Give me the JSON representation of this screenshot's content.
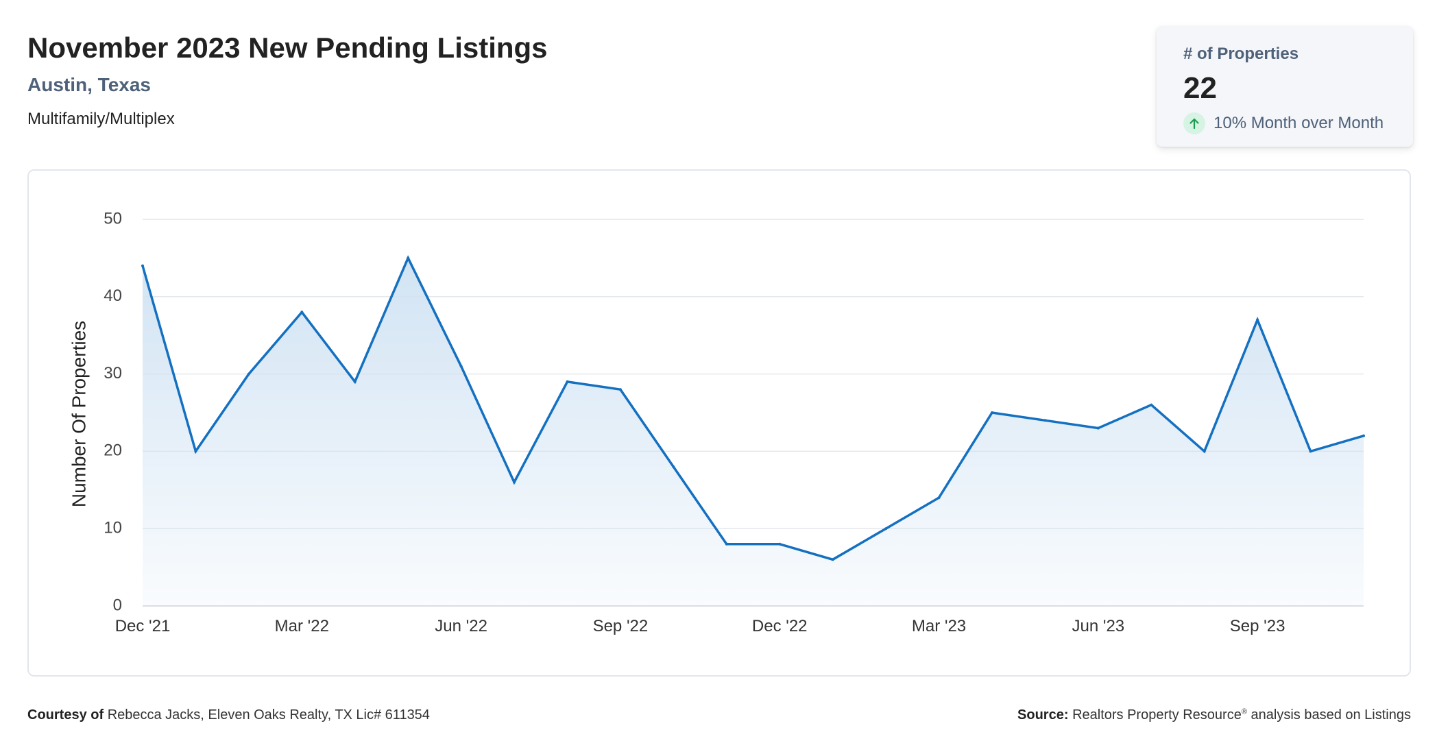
{
  "header": {
    "title": "November 2023 New Pending Listings",
    "location": "Austin, Texas",
    "property_type": "Multifamily/Multiplex"
  },
  "kpi": {
    "label": "# of Properties",
    "value": "22",
    "change_text": "10% Month over Month",
    "change_icon": "arrow-up-icon",
    "change_color": "#1a9d4f"
  },
  "chart_data": {
    "type": "area",
    "title": "",
    "xlabel": "",
    "ylabel": "Number Of Properties",
    "ylim": [
      0,
      50
    ],
    "yticks": [
      "0",
      "10",
      "20",
      "30",
      "40",
      "50"
    ],
    "xtick_labels": [
      "Dec '21",
      "Mar '22",
      "Jun '22",
      "Sep '22",
      "Dec '22",
      "Mar '23",
      "Jun '23",
      "Sep '23"
    ],
    "x": [
      "Dec '21",
      "Jan '22",
      "Feb '22",
      "Mar '22",
      "Apr '22",
      "May '22",
      "Jun '22",
      "Jul '22",
      "Aug '22",
      "Sep '22",
      "Oct '22",
      "Nov '22",
      "Dec '22",
      "Jan '23",
      "Feb '23",
      "Mar '23",
      "Apr '23",
      "May '23",
      "Jun '23",
      "Jul '23",
      "Aug '23",
      "Sep '23",
      "Oct '23",
      "Nov '23"
    ],
    "values": [
      44,
      20,
      30,
      38,
      29,
      45,
      31,
      16,
      29,
      28,
      18,
      8,
      8,
      6,
      10,
      14,
      25,
      24,
      23,
      26,
      20,
      37,
      20,
      22
    ],
    "grid": true,
    "line_color": "#1470c0",
    "fill_color": "#cfe2f3"
  },
  "footer": {
    "courtesy_label": "Courtesy of",
    "courtesy_text": "Rebecca Jacks, Eleven Oaks Realty, TX Lic# 611354",
    "source_label": "Source:",
    "source_text_1": "Realtors Property Resource",
    "source_sup": "®",
    "source_text_2": "analysis based on Listings"
  }
}
